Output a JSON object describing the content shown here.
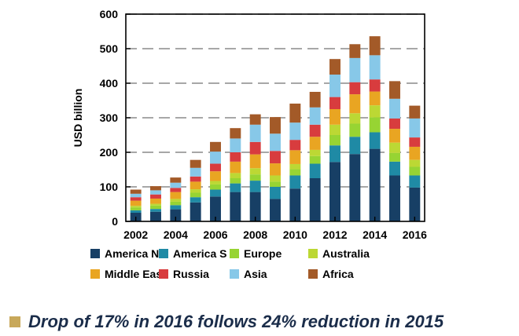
{
  "chart_data": {
    "type": "bar",
    "stacked": true,
    "ylabel": "USD billion",
    "ylim": [
      0,
      600
    ],
    "yticks": [
      0,
      100,
      200,
      300,
      400,
      500,
      600
    ],
    "xtick_labels": [
      "2002",
      "2004",
      "2006",
      "2008",
      "2010",
      "2012",
      "2014",
      "2016"
    ],
    "categories": [
      "2002",
      "2003",
      "2004",
      "2005",
      "2006",
      "2007",
      "2008",
      "2009",
      "2010",
      "2011",
      "2012",
      "2013",
      "2014",
      "2015",
      "2016"
    ],
    "series": [
      {
        "name": "America N",
        "color": "#173f65",
        "values": [
          25,
          28,
          35,
          55,
          72,
          85,
          85,
          65,
          95,
          125,
          172,
          195,
          210,
          133,
          98
        ]
      },
      {
        "name": "America S",
        "color": "#1f8aa5",
        "values": [
          7,
          8,
          12,
          15,
          20,
          25,
          33,
          35,
          38,
          42,
          48,
          50,
          48,
          40,
          35
        ]
      },
      {
        "name": "Europe",
        "color": "#97d433",
        "values": [
          8,
          10,
          10,
          13,
          15,
          15,
          18,
          15,
          18,
          22,
          30,
          38,
          43,
          25,
          25
        ]
      },
      {
        "name": "Australia",
        "color": "#bcd834",
        "values": [
          5,
          5,
          8,
          10,
          10,
          15,
          18,
          18,
          15,
          18,
          30,
          30,
          35,
          30,
          20
        ]
      },
      {
        "name": "Middle East",
        "color": "#e9a522",
        "values": [
          15,
          15,
          20,
          22,
          28,
          33,
          40,
          35,
          40,
          38,
          45,
          55,
          40,
          40,
          38
        ]
      },
      {
        "name": "Russia",
        "color": "#d83c3e",
        "values": [
          10,
          12,
          12,
          15,
          22,
          27,
          36,
          36,
          30,
          35,
          35,
          35,
          35,
          30,
          27
        ]
      },
      {
        "name": "Asia",
        "color": "#87c8e8",
        "values": [
          10,
          12,
          15,
          25,
          35,
          40,
          50,
          50,
          50,
          50,
          65,
          70,
          70,
          57,
          55
        ]
      },
      {
        "name": "Africa",
        "color": "#a35a28",
        "values": [
          12,
          12,
          15,
          23,
          28,
          30,
          30,
          48,
          55,
          45,
          45,
          40,
          55,
          51,
          37
        ]
      }
    ]
  },
  "caption": {
    "text": "Drop of 17% in 2016 follows 24% reduction in 2015",
    "bullet_color": "#c8a85a"
  }
}
